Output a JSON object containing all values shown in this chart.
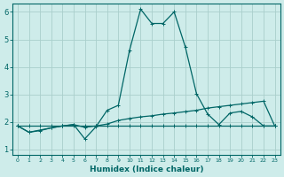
{
  "xlabel": "Humidex (Indice chaleur)",
  "background_color": "#ceecea",
  "grid_color": "#aacfcc",
  "line_color": "#006666",
  "xlim": [
    -0.5,
    23.5
  ],
  "ylim": [
    0.8,
    6.3
  ],
  "yticks": [
    1,
    2,
    3,
    4,
    5,
    6
  ],
  "xticks": [
    0,
    1,
    2,
    3,
    4,
    5,
    6,
    7,
    8,
    9,
    10,
    11,
    12,
    13,
    14,
    15,
    16,
    17,
    18,
    19,
    20,
    21,
    22,
    23
  ],
  "line1_x": [
    0,
    1,
    2,
    3,
    4,
    5,
    6,
    7,
    8,
    9,
    10,
    11,
    12,
    13,
    14,
    15,
    16,
    17,
    18,
    19,
    20,
    21,
    22,
    23
  ],
  "line1_y": [
    1.85,
    1.85,
    1.85,
    1.85,
    1.85,
    1.85,
    1.85,
    1.85,
    1.85,
    1.85,
    1.85,
    1.85,
    1.85,
    1.85,
    1.85,
    1.85,
    1.85,
    1.85,
    1.85,
    1.85,
    1.85,
    1.85,
    1.85,
    1.85
  ],
  "line2_x": [
    0,
    1,
    2,
    3,
    4,
    5,
    6,
    7,
    8,
    9,
    10,
    11,
    12,
    13,
    14,
    15,
    16,
    17,
    18,
    19,
    20,
    21,
    22,
    23
  ],
  "line2_y": [
    1.85,
    1.62,
    1.7,
    1.78,
    1.85,
    1.9,
    1.8,
    1.85,
    1.92,
    2.05,
    2.12,
    2.18,
    2.22,
    2.28,
    2.32,
    2.37,
    2.42,
    2.5,
    2.55,
    2.6,
    2.65,
    2.7,
    2.75,
    1.85
  ],
  "line3_x": [
    0,
    1,
    2,
    3,
    4,
    5,
    6,
    7,
    8,
    9,
    10,
    11,
    12,
    13,
    14,
    15,
    16,
    17,
    18,
    19,
    20,
    21,
    22,
    23
  ],
  "line3_y": [
    1.85,
    1.62,
    1.68,
    1.78,
    1.85,
    1.9,
    1.38,
    1.82,
    2.42,
    2.6,
    4.6,
    6.1,
    5.58,
    5.58,
    6.0,
    4.72,
    3.02,
    2.28,
    1.9,
    2.32,
    2.38,
    2.18,
    1.85,
    1.85
  ]
}
